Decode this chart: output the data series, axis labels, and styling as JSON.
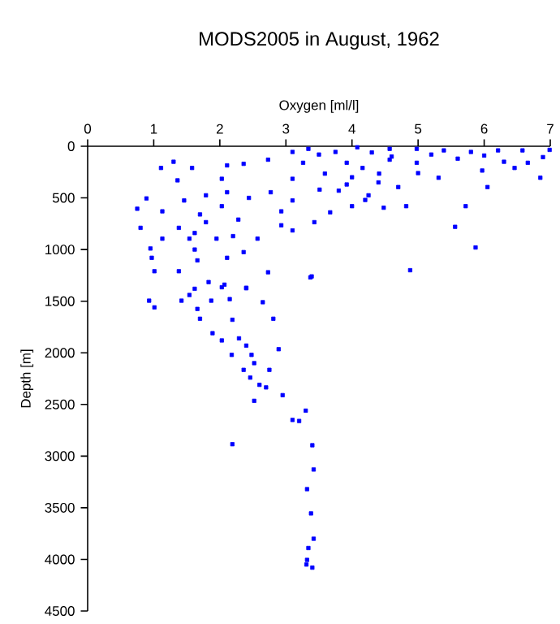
{
  "chart_data": {
    "type": "scatter",
    "title": "MODS2005 in August, 1962",
    "xlabel": "Oxygen [ml/l]",
    "ylabel": "Depth [m]",
    "xlim": [
      0,
      7
    ],
    "xticks": [
      0,
      1,
      2,
      3,
      4,
      5,
      6,
      7
    ],
    "ylim": [
      4500,
      0
    ],
    "yticks": [
      0,
      500,
      1000,
      1500,
      2000,
      2500,
      3000,
      3500,
      4000,
      4500
    ],
    "marker": "square",
    "series": [
      {
        "color": "#0000ff",
        "x": [
          1.11,
          1.3,
          1.58,
          1.36,
          0.89,
          0.75,
          1.13,
          0.8,
          0.95,
          0.97,
          1.01,
          1.62,
          1.66,
          1.38,
          1.62,
          2.03,
          2.11,
          2.36,
          2.73,
          3.1,
          3.34,
          3.75,
          4.08,
          4.57,
          4.98,
          5.39,
          5.8,
          6.21,
          6.58,
          6.99,
          6.89,
          6.85,
          6.66,
          6.46,
          6.05,
          5.97,
          5.72,
          5.56,
          5.87,
          4.88,
          4.82,
          4.48,
          4.7,
          5.31,
          4.25,
          4.0,
          3.67,
          3.43,
          3.1,
          2.93,
          2.73,
          3.39,
          2.57,
          2.36,
          2.11,
          1.95,
          1.79,
          1.62,
          1.38,
          1.13,
          1.46,
          1.79,
          2.11,
          2.44,
          2.77,
          3.1,
          3.26,
          3.59,
          3.92,
          4.16,
          4.41,
          4.57,
          4.98,
          3.92,
          3.51,
          3.1,
          2.93,
          2.28,
          2.03,
          1.7,
          1.54,
          2.2,
          2.07,
          1.83,
          2.4,
          0.93,
          1.01,
          1.42,
          1.66,
          1.7,
          1.54,
          1.87,
          2.03,
          2.15,
          2.4,
          2.19,
          1.89,
          2.03,
          2.18,
          2.29,
          2.4,
          2.48,
          2.52,
          2.36,
          2.46,
          2.6,
          2.7,
          2.75,
          2.89,
          2.65,
          2.81,
          2.52,
          2.95,
          3.3,
          3.1,
          3.2,
          2.19,
          3.4,
          3.42,
          3.32,
          3.38,
          3.42,
          3.34,
          3.32,
          3.31,
          3.4,
          3.37,
          3.5,
          4.3,
          4.6,
          5.2,
          5.6,
          6.0,
          6.3,
          4.0,
          4.4,
          3.8,
          5.0,
          4.2
        ],
        "values": [
          210,
          150,
          210,
          330,
          505,
          605,
          630,
          790,
          990,
          1080,
          1210,
          1000,
          1105,
          1210,
          1380,
          315,
          185,
          170,
          130,
          55,
          25,
          55,
          10,
          25,
          25,
          40,
          55,
          40,
          40,
          35,
          105,
          305,
          160,
          210,
          395,
          235,
          580,
          780,
          980,
          1200,
          580,
          595,
          395,
          305,
          475,
          580,
          640,
          735,
          815,
          765,
          1220,
          1260,
          895,
          1025,
          1080,
          895,
          735,
          840,
          790,
          895,
          525,
          475,
          445,
          500,
          445,
          315,
          160,
          265,
          370,
          210,
          265,
          130,
          160,
          160,
          420,
          525,
          630,
          710,
          580,
          660,
          895,
          870,
          1340,
          1315,
          1370,
          1495,
          1560,
          1495,
          1575,
          1670,
          1440,
          1495,
          1365,
          1480,
          1375,
          1680,
          1810,
          1880,
          2020,
          1860,
          1930,
          2020,
          2100,
          2165,
          2240,
          2310,
          2335,
          2165,
          1965,
          1510,
          1670,
          2465,
          2410,
          2560,
          2650,
          2660,
          2885,
          2895,
          3130,
          3320,
          3555,
          3800,
          3890,
          4005,
          4050,
          4080,
          1270,
          80,
          60,
          100,
          80,
          120,
          90,
          150,
          300,
          350,
          430,
          260,
          520
        ]
      }
    ]
  }
}
